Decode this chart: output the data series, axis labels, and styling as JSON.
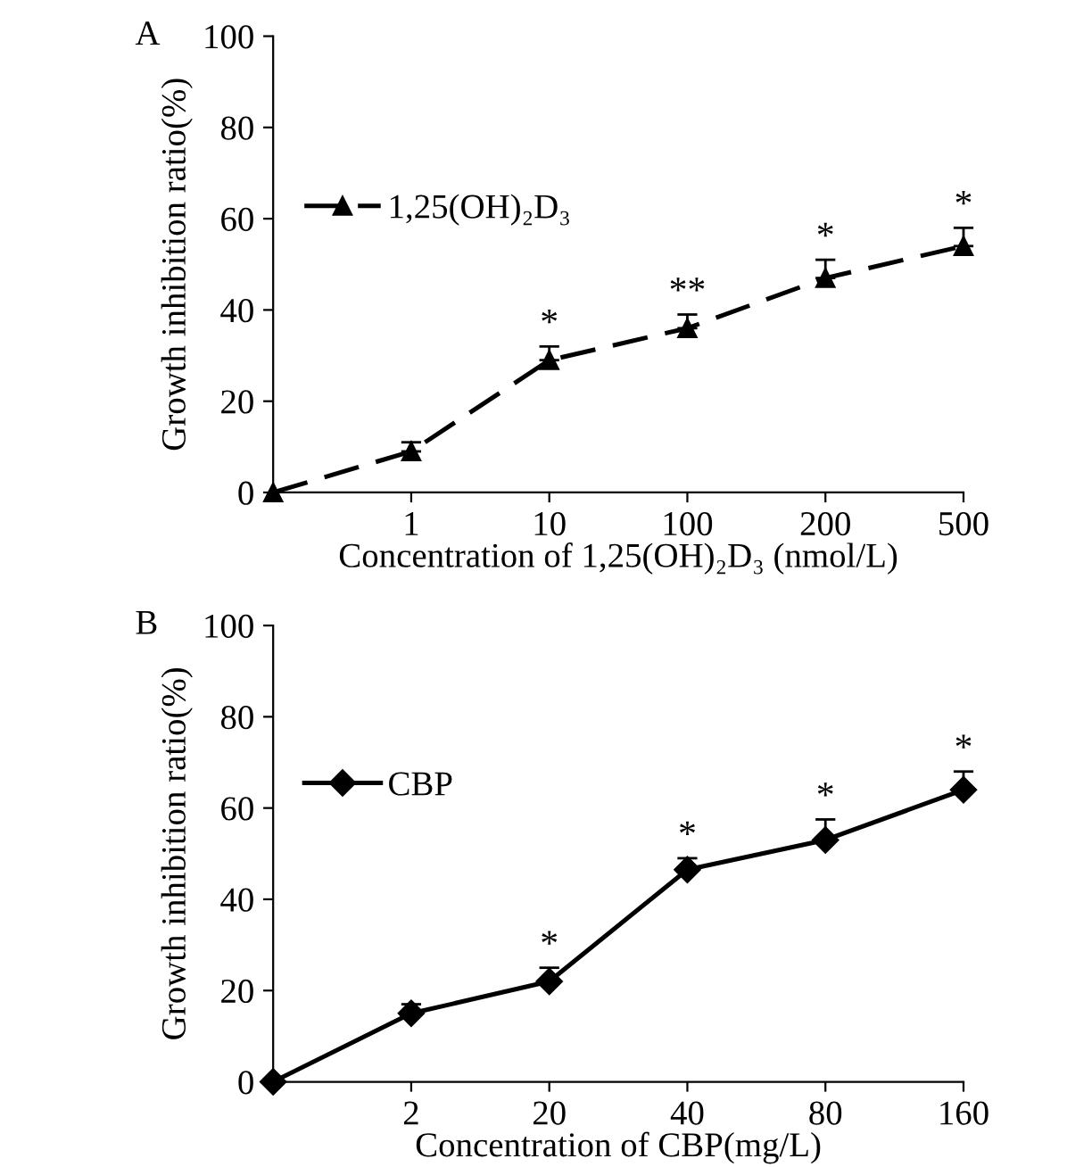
{
  "chart_data": [
    {
      "type": "line",
      "categories": [
        null,
        "1",
        "10",
        "100",
        "200",
        "500"
      ],
      "xlabel": "Concentration of 1,25(OH)₂D₃ (nmol/L)",
      "ylabel": "Growth inhibition ratio(%)",
      "ylim": [
        0,
        100
      ],
      "yticks": [
        0,
        20,
        40,
        60,
        80,
        100
      ],
      "grid": false,
      "legend": "left",
      "marker": "triangle",
      "line_style": "dashed",
      "series": [
        {
          "name": "1,25(OH)₂D₃",
          "color": "#000000",
          "values": [
            0,
            9,
            29,
            36,
            47,
            54
          ],
          "errors": [
            null,
            [
              9,
              11
            ],
            [
              29,
              32
            ],
            [
              36,
              39
            ],
            [
              47,
              51
            ],
            [
              54,
              58
            ]
          ]
        }
      ],
      "annotations": [
        "A",
        {
          "text": "*",
          "x": "10",
          "y": 33
        },
        {
          "text": "**",
          "x": "100",
          "y": 40
        },
        {
          "text": "*",
          "x": "200",
          "y": 52
        },
        {
          "text": "*",
          "x": "500",
          "y": 59
        }
      ]
    },
    {
      "type": "line",
      "categories": [
        null,
        "2",
        "20",
        "40",
        "80",
        "160"
      ],
      "xlabel": "Concentration of CBP(mg/L)",
      "ylabel": "Growth inhibition ratio(%)",
      "ylim": [
        0,
        100
      ],
      "yticks": [
        0,
        20,
        40,
        60,
        80,
        100
      ],
      "grid": false,
      "legend": "upper left",
      "marker": "diamond",
      "line_style": "solid",
      "series": [
        {
          "name": "CBP",
          "color": "#000000",
          "values": [
            0,
            15,
            22,
            46.5,
            53,
            64
          ],
          "errors": [
            null,
            [
              15,
              17
            ],
            [
              22,
              25
            ],
            [
              46.5,
              49
            ],
            [
              53,
              57.5
            ],
            [
              64,
              68
            ]
          ]
        }
      ],
      "annotations": [
        "B",
        {
          "text": "*",
          "x": "20",
          "y": 26
        },
        {
          "text": "*",
          "x": "40",
          "y": 50
        },
        {
          "text": "*",
          "x": "80",
          "y": 58.5
        },
        {
          "text": "*",
          "x": "160",
          "y": 69
        }
      ]
    }
  ]
}
